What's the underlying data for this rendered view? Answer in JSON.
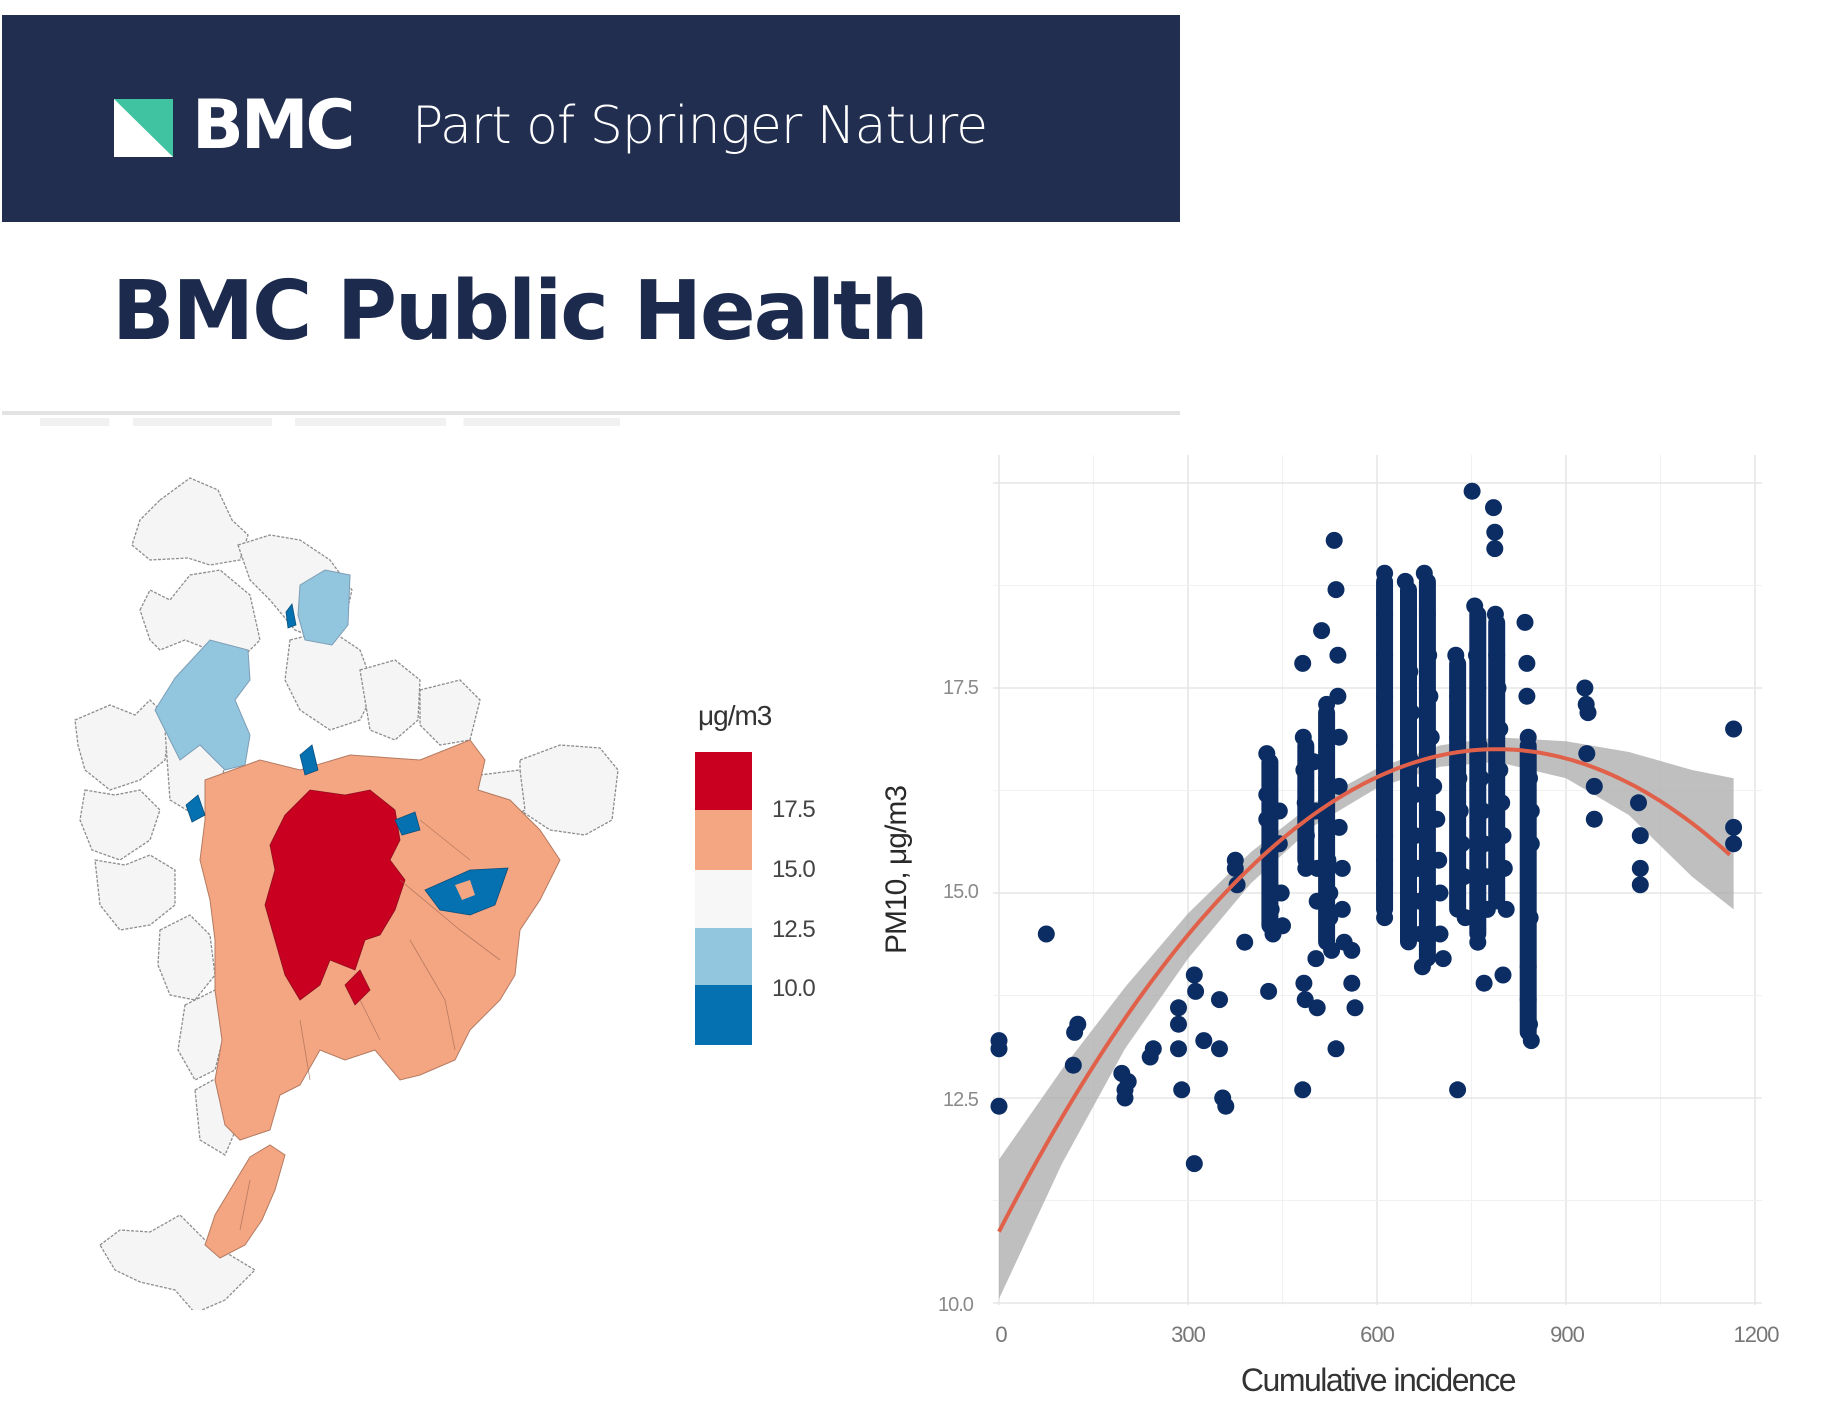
{
  "header": {
    "brand_name": "BMC",
    "tagline": "Part of Springer Nature",
    "journal_title": "BMC Public Health",
    "colors": {
      "bar_bg": "#212e50",
      "logo_green": "#3fc3a0",
      "logo_white": "#ffffff",
      "title_text": "#1c2a4d"
    }
  },
  "map": {
    "legend": {
      "title": "μg/m3",
      "bins": [
        {
          "color": "#ca0020",
          "label": "17.5"
        },
        {
          "color": "#f4a582",
          "label": "15.0"
        },
        {
          "color": "#f7f7f7",
          "label": "12.5"
        },
        {
          "color": "#92c5de",
          "label": "10.0"
        },
        {
          "color": "#0571b0",
          "label": ""
        }
      ]
    }
  },
  "chart_data": {
    "type": "scatter",
    "title": "",
    "xlabel": "Cumulative incidence",
    "ylabel": "PM10, μg/m3",
    "xlim": [
      0,
      1200
    ],
    "ylim": [
      10.0,
      20.0
    ],
    "x_ticks": [
      "0",
      "300",
      "600",
      "900",
      "1200"
    ],
    "y_ticks": [
      "10.0",
      "12.5",
      "15.0",
      "17.5"
    ],
    "grid": true,
    "legend": null,
    "point_color": "#0b2d63",
    "fit": {
      "type": "quadratic smooth with 95% CI",
      "line_color": "#e0604a",
      "band_color": "#a9a9a9",
      "curve": [
        [
          0,
          10.87
        ],
        [
          100,
          12.27
        ],
        [
          200,
          13.48
        ],
        [
          300,
          14.49
        ],
        [
          400,
          15.32
        ],
        [
          500,
          15.96
        ],
        [
          600,
          16.4
        ],
        [
          700,
          16.67
        ],
        [
          790,
          16.75
        ],
        [
          900,
          16.63
        ],
        [
          1000,
          16.34
        ],
        [
          1100,
          15.8
        ],
        [
          1166,
          15.6
        ]
      ],
      "band_upper": [
        [
          0,
          11.75
        ],
        [
          100,
          12.85
        ],
        [
          200,
          13.85
        ],
        [
          300,
          14.75
        ],
        [
          400,
          15.5
        ],
        [
          500,
          16.1
        ],
        [
          600,
          16.52
        ],
        [
          700,
          16.8
        ],
        [
          790,
          16.9
        ],
        [
          900,
          16.85
        ],
        [
          1000,
          16.72
        ],
        [
          1100,
          16.5
        ],
        [
          1166,
          16.4
        ]
      ],
      "band_lower": [
        [
          0,
          10.05
        ],
        [
          100,
          11.7
        ],
        [
          200,
          13.1
        ],
        [
          300,
          14.2
        ],
        [
          400,
          15.12
        ],
        [
          500,
          15.82
        ],
        [
          600,
          16.28
        ],
        [
          700,
          16.54
        ],
        [
          790,
          16.6
        ],
        [
          900,
          16.4
        ],
        [
          1000,
          15.95
        ],
        [
          1100,
          15.2
        ],
        [
          1166,
          14.8
        ]
      ]
    },
    "points": [
      [
        0,
        13.1
      ],
      [
        0,
        13.2
      ],
      [
        0,
        12.4
      ],
      [
        75,
        14.5
      ],
      [
        120,
        13.3
      ],
      [
        125,
        13.4
      ],
      [
        118,
        12.9
      ],
      [
        195,
        12.8
      ],
      [
        200,
        12.6
      ],
      [
        200,
        12.5
      ],
      [
        205,
        12.7
      ],
      [
        240,
        13.0
      ],
      [
        245,
        13.1
      ],
      [
        285,
        13.6
      ],
      [
        285,
        13.4
      ],
      [
        285,
        13.1
      ],
      [
        290,
        12.6
      ],
      [
        310,
        14.0
      ],
      [
        312,
        13.8
      ],
      [
        310,
        11.7
      ],
      [
        325,
        13.2
      ],
      [
        350,
        13.7
      ],
      [
        350,
        13.1
      ],
      [
        355,
        12.5
      ],
      [
        360,
        12.4
      ],
      [
        375,
        15.4
      ],
      [
        375,
        15.3
      ],
      [
        378,
        15.1
      ],
      [
        390,
        14.4
      ],
      [
        425,
        16.7
      ],
      [
        425,
        16.2
      ],
      [
        425,
        15.9
      ],
      [
        428,
        15.5
      ],
      [
        430,
        15.1
      ],
      [
        432,
        14.8
      ],
      [
        435,
        14.5
      ],
      [
        428,
        13.8
      ],
      [
        445,
        16.0
      ],
      [
        445,
        15.6
      ],
      [
        448,
        15.0
      ],
      [
        450,
        14.6
      ],
      [
        482,
        17.8
      ],
      [
        483,
        16.9
      ],
      [
        484,
        16.5
      ],
      [
        486,
        16.1
      ],
      [
        488,
        15.7
      ],
      [
        487,
        15.3
      ],
      [
        484,
        13.9
      ],
      [
        486,
        13.7
      ],
      [
        482,
        12.6
      ],
      [
        500,
        16.6
      ],
      [
        502,
        16.0
      ],
      [
        505,
        15.3
      ],
      [
        505,
        14.9
      ],
      [
        503,
        14.2
      ],
      [
        505,
        13.6
      ],
      [
        512,
        18.2
      ],
      [
        520,
        17.3
      ],
      [
        520,
        16.4
      ],
      [
        520,
        15.9
      ],
      [
        522,
        15.4
      ],
      [
        525,
        15.0
      ],
      [
        525,
        14.7
      ],
      [
        528,
        14.3
      ],
      [
        532,
        19.3
      ],
      [
        535,
        18.7
      ],
      [
        538,
        17.9
      ],
      [
        538,
        17.4
      ],
      [
        540,
        16.9
      ],
      [
        540,
        16.3
      ],
      [
        540,
        15.8
      ],
      [
        545,
        15.3
      ],
      [
        545,
        14.8
      ],
      [
        548,
        14.4
      ],
      [
        535,
        13.1
      ],
      [
        560,
        14.3
      ],
      [
        560,
        13.9
      ],
      [
        565,
        13.6
      ],
      [
        612,
        18.9
      ],
      [
        612,
        18.4
      ],
      [
        612,
        17.9
      ],
      [
        612,
        17.4
      ],
      [
        612,
        16.8
      ],
      [
        612,
        16.3
      ],
      [
        612,
        15.7
      ],
      [
        612,
        15.4
      ],
      [
        612,
        15.1
      ],
      [
        612,
        14.7
      ],
      [
        645,
        18.8
      ],
      [
        650,
        18.3
      ],
      [
        652,
        17.7
      ],
      [
        655,
        17.2
      ],
      [
        655,
        16.6
      ],
      [
        660,
        16.2
      ],
      [
        660,
        15.7
      ],
      [
        665,
        15.3
      ],
      [
        668,
        14.9
      ],
      [
        670,
        14.5
      ],
      [
        672,
        14.1
      ],
      [
        675,
        18.9
      ],
      [
        680,
        18.4
      ],
      [
        682,
        17.9
      ],
      [
        684,
        17.4
      ],
      [
        686,
        16.9
      ],
      [
        690,
        16.3
      ],
      [
        695,
        15.9
      ],
      [
        698,
        15.4
      ],
      [
        700,
        15.0
      ],
      [
        700,
        14.5
      ],
      [
        705,
        14.2
      ],
      [
        725,
        17.9
      ],
      [
        728,
        17.4
      ],
      [
        728,
        16.9
      ],
      [
        730,
        16.4
      ],
      [
        732,
        16.0
      ],
      [
        735,
        15.6
      ],
      [
        738,
        15.2
      ],
      [
        740,
        14.7
      ],
      [
        728,
        12.6
      ],
      [
        751,
        19.9
      ],
      [
        755,
        18.5
      ],
      [
        758,
        17.9
      ],
      [
        760,
        17.5
      ],
      [
        762,
        16.8
      ],
      [
        765,
        16.4
      ],
      [
        768,
        16.0
      ],
      [
        770,
        15.6
      ],
      [
        772,
        15.2
      ],
      [
        775,
        14.8
      ],
      [
        760,
        14.4
      ],
      [
        770,
        13.9
      ],
      [
        785,
        19.7
      ],
      [
        787,
        19.4
      ],
      [
        787,
        19.2
      ],
      [
        788,
        18.4
      ],
      [
        790,
        17.9
      ],
      [
        792,
        17.5
      ],
      [
        795,
        17.0
      ],
      [
        795,
        16.5
      ],
      [
        798,
        16.1
      ],
      [
        800,
        15.7
      ],
      [
        802,
        15.3
      ],
      [
        805,
        14.8
      ],
      [
        800,
        14.0
      ],
      [
        835,
        18.3
      ],
      [
        838,
        17.8
      ],
      [
        838,
        17.4
      ],
      [
        840,
        16.9
      ],
      [
        842,
        16.4
      ],
      [
        845,
        16.0
      ],
      [
        845,
        15.6
      ],
      [
        843,
        14.7
      ],
      [
        840,
        14.1
      ],
      [
        840,
        13.7
      ],
      [
        842,
        13.4
      ],
      [
        845,
        13.2
      ],
      [
        930,
        17.5
      ],
      [
        932,
        17.3
      ],
      [
        935,
        17.2
      ],
      [
        933,
        16.7
      ],
      [
        945,
        16.3
      ],
      [
        945,
        15.9
      ],
      [
        1015,
        16.1
      ],
      [
        1018,
        15.7
      ],
      [
        1018,
        15.3
      ],
      [
        1018,
        15.1
      ],
      [
        1166,
        17.0
      ],
      [
        1166,
        15.8
      ],
      [
        1166,
        15.6
      ]
    ]
  }
}
